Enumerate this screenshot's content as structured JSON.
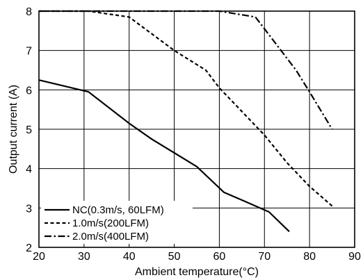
{
  "chart_data": {
    "type": "line",
    "xlabel": "Ambient temperature(°C)",
    "ylabel": "Output current (A)",
    "xlim": [
      20,
      90
    ],
    "ylim": [
      2,
      8
    ],
    "xticks": [
      "20",
      "30",
      "40",
      "50",
      "60",
      "70",
      "80",
      "90"
    ],
    "yticks": [
      "2",
      "3",
      "4",
      "5",
      "6",
      "7",
      "8"
    ],
    "grid": true,
    "legend_position": "bottom-left",
    "series": [
      {
        "name": "NC(0.3m/s, 60LFM)",
        "style": "solid",
        "color": "#000000",
        "points": [
          [
            20,
            6.25
          ],
          [
            31,
            5.95
          ],
          [
            40,
            5.15
          ],
          [
            45,
            4.75
          ],
          [
            50,
            4.4
          ],
          [
            55,
            4.05
          ],
          [
            61,
            3.4
          ],
          [
            66,
            3.15
          ],
          [
            71,
            2.9
          ],
          [
            75.5,
            2.4
          ]
        ]
      },
      {
        "name": "1.0m/s(200LFM)",
        "style": "dashed",
        "color": "#000000",
        "points": [
          [
            20,
            8.0
          ],
          [
            31,
            8.0
          ],
          [
            40,
            7.85
          ],
          [
            50,
            7.0
          ],
          [
            57,
            6.5
          ],
          [
            60,
            6.05
          ],
          [
            65,
            5.45
          ],
          [
            70,
            4.85
          ],
          [
            75,
            4.15
          ],
          [
            80,
            3.55
          ],
          [
            85,
            3.05
          ]
        ]
      },
      {
        "name": "2.0m/s(400LFM)",
        "style": "dashdot",
        "color": "#000000",
        "points": [
          [
            20,
            8.0
          ],
          [
            60,
            8.0
          ],
          [
            68,
            7.85
          ],
          [
            71,
            7.4
          ],
          [
            77,
            6.5
          ],
          [
            80,
            5.95
          ],
          [
            85,
            5.0
          ]
        ]
      }
    ]
  }
}
